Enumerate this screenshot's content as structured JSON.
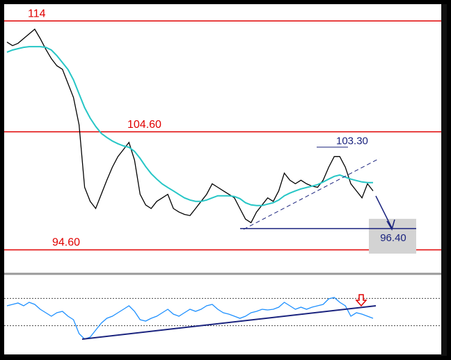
{
  "chart_data": [
    {
      "type": "line",
      "ylim": [
        92.8,
        115.3
      ],
      "series": [
        {
          "color": "#000000",
          "values": [
            112.2,
            111.9,
            112.1,
            112.5,
            112.9,
            113.3,
            112.5,
            111.6,
            110.8,
            110.2,
            109.9,
            108.7,
            107.5,
            105.2,
            99.9,
            98.7,
            98.1,
            99.3,
            100.5,
            101.6,
            102.5,
            103.1,
            103.7,
            102.2,
            99.3,
            98.4,
            98.1,
            98.7,
            99.0,
            99.3,
            98.1,
            97.8,
            97.6,
            97.5,
            98.1,
            98.7,
            99.3,
            100.2,
            99.9,
            99.6,
            99.3,
            99.0,
            98.1,
            97.2,
            96.9,
            97.8,
            98.4,
            99.0,
            98.7,
            99.6,
            101.1,
            100.5,
            100.2,
            100.5,
            100.2,
            100.0,
            99.9,
            100.5,
            101.6,
            102.5,
            102.5,
            101.6,
            100.2,
            99.6,
            99.0,
            100.2,
            99.6
          ]
        },
        {
          "color": "#26c6c6",
          "values": [
            111.35,
            111.53,
            111.65,
            111.76,
            111.82,
            111.82,
            111.82,
            111.76,
            111.53,
            111.06,
            110.47,
            109.88,
            109.0,
            107.82,
            106.65,
            105.76,
            105.06,
            104.47,
            104.12,
            103.82,
            103.59,
            103.41,
            103.29,
            102.94,
            102.35,
            101.65,
            101.06,
            100.59,
            100.18,
            99.88,
            99.59,
            99.29,
            99.0,
            98.82,
            98.71,
            98.71,
            98.82,
            99.0,
            99.18,
            99.18,
            99.18,
            99.12,
            98.94,
            98.59,
            98.41,
            98.35,
            98.35,
            98.47,
            98.59,
            98.82,
            99.18,
            99.41,
            99.59,
            99.76,
            99.88,
            100.0,
            100.12,
            100.35,
            100.59,
            100.82,
            100.94,
            100.76,
            100.59,
            100.47,
            100.35,
            100.29,
            100.29
          ]
        }
      ],
      "levels": [
        114,
        {
          "value": 104.6,
          "label": "104.60"
        },
        {
          "value": 94.6,
          "label": "94.60"
        }
      ],
      "level_color": "#e00000",
      "annotations": [
        {
          "value": 103.3,
          "label": "103.30",
          "color": "#1a237e"
        },
        {
          "value": 96.4,
          "label": "96.40",
          "color": "#1a237e"
        }
      ]
    },
    {
      "type": "line",
      "ylim": [
        0,
        100
      ],
      "series": [
        {
          "color": "#1e90ff",
          "values": [
            59.2,
            61.2,
            63.3,
            59.2,
            64.3,
            61.2,
            54.1,
            49.0,
            43.9,
            49.0,
            51.0,
            43.9,
            38.8,
            18.4,
            10.2,
            13.3,
            23.5,
            33.7,
            40.8,
            43.9,
            49.0,
            54.1,
            59.2,
            51.0,
            38.8,
            36.7,
            40.8,
            43.9,
            49.0,
            54.1,
            46.9,
            43.9,
            49.0,
            54.1,
            51.0,
            54.1,
            59.2,
            61.2,
            54.1,
            49.0,
            46.9,
            43.9,
            40.8,
            43.9,
            49.0,
            51.0,
            54.1,
            53.1,
            54.1,
            57.1,
            64.3,
            59.2,
            54.1,
            57.1,
            54.1,
            57.1,
            59.2,
            61.2,
            69.4,
            71.4,
            64.3,
            59.2,
            43.9,
            49.0,
            46.9,
            43.9,
            40.8
          ]
        }
      ],
      "levels": [
        70,
        30
      ]
    }
  ]
}
